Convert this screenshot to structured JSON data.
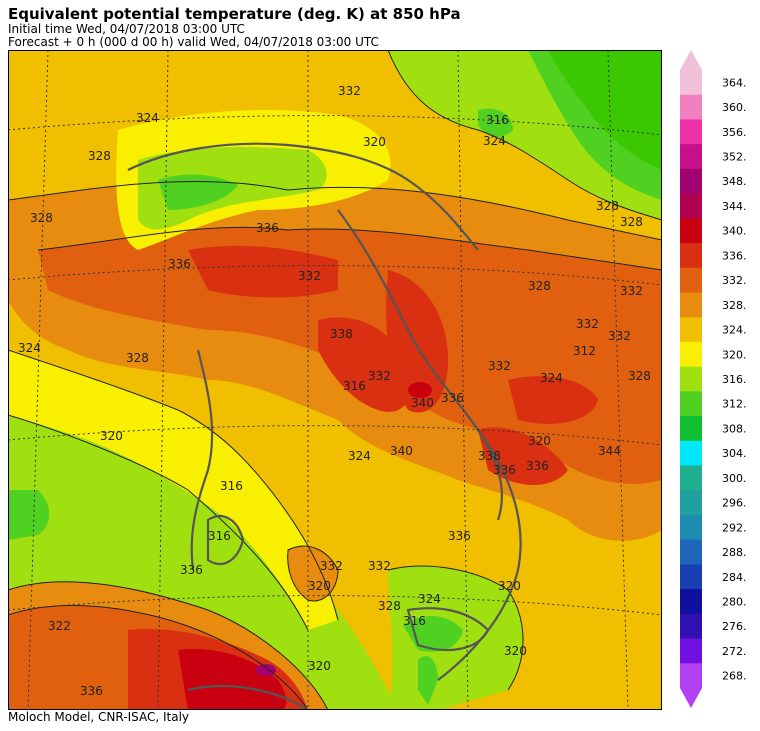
{
  "header": {
    "title": "Equivalent potential temperature (deg. K) at 850 hPa",
    "initial_time": "Initial time  Wed, 04/07/2018  03:00 UTC",
    "forecast": "Forecast  +   0 h  (000 d 00 h)  valid Wed, 04/07/2018 03:00 UTC"
  },
  "footer": "Moloch Model, CNR-ISAC, Italy",
  "colorbar": {
    "levels": [
      "268.",
      "272.",
      "276.",
      "280.",
      "284.",
      "288.",
      "292.",
      "296.",
      "300.",
      "304.",
      "308.",
      "312.",
      "316.",
      "320.",
      "324.",
      "328.",
      "332.",
      "336.",
      "340.",
      "344.",
      "348.",
      "352.",
      "356.",
      "360.",
      "364."
    ],
    "colors": [
      "#b040f0",
      "#7010e0",
      "#3010b0",
      "#1010a0",
      "#1840b0",
      "#1e64b8",
      "#1e8cb0",
      "#20a0a0",
      "#20b090",
      "#00e8f8",
      "#10c030",
      "#50d020",
      "#a0e010",
      "#f8f000",
      "#f0c000",
      "#e88c10",
      "#e06010",
      "#d83010",
      "#c80010",
      "#b00050",
      "#a00070",
      "#c8108c",
      "#f030a8",
      "#f080c0",
      "#f0c0d8"
    ]
  },
  "map_labels": [
    "324",
    "328",
    "332",
    "336",
    "328",
    "332",
    "320",
    "324",
    "328",
    "332",
    "336",
    "336",
    "338",
    "340",
    "336",
    "336",
    "332",
    "324",
    "320",
    "316",
    "316",
    "316",
    "320",
    "324",
    "328",
    "320",
    "332",
    "340",
    "332",
    "336",
    "328",
    "316",
    "324",
    "320",
    "322",
    "336",
    "332",
    "324",
    "328",
    "312",
    "328",
    "332",
    "338",
    "320",
    "316",
    "336",
    "344",
    "332",
    "328",
    "320"
  ]
}
